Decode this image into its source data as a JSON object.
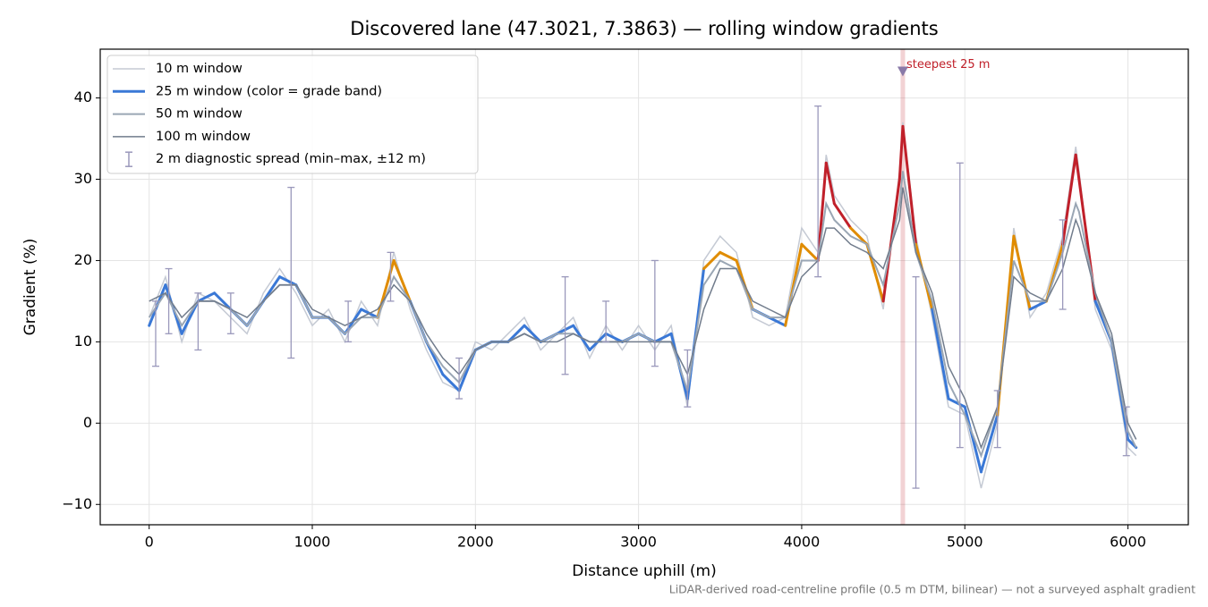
{
  "chart_data": {
    "type": "line",
    "title": "Discovered lane (47.3021, 7.3863) — rolling window gradients",
    "xlabel": "Distance uphill (m)",
    "ylabel": "Gradient (%)",
    "footnote": "LiDAR-derived road-centreline profile (0.5 m DTM, bilinear) — not a surveyed asphalt gradient",
    "xlim": [
      -300,
      6370
    ],
    "ylim": [
      -12.5,
      46
    ],
    "xticks": [
      0,
      1000,
      2000,
      3000,
      4000,
      5000,
      6000
    ],
    "yticks": [
      {
        "value": -10,
        "label": "−10"
      },
      0,
      10,
      20,
      30,
      40
    ],
    "grid": true,
    "legend": "upper left",
    "x": [
      0,
      100,
      200,
      300,
      400,
      500,
      600,
      700,
      800,
      900,
      1000,
      1100,
      1200,
      1300,
      1400,
      1500,
      1600,
      1700,
      1800,
      1900,
      2000,
      2100,
      2200,
      2300,
      2400,
      2500,
      2600,
      2700,
      2800,
      2900,
      3000,
      3100,
      3200,
      3300,
      3400,
      3500,
      3600,
      3700,
      3800,
      3900,
      4000,
      4100,
      4150,
      4200,
      4300,
      4400,
      4500,
      4600,
      4620,
      4700,
      4800,
      4900,
      5000,
      5100,
      5200,
      5300,
      5400,
      5500,
      5600,
      5680,
      5700,
      5800,
      5900,
      6000,
      6050
    ],
    "series": [
      {
        "name": "10 m window",
        "color": "#c5cad4",
        "width": 1.5,
        "values": [
          13,
          18,
          10,
          16,
          15,
          13,
          11,
          16,
          19,
          16,
          12,
          14,
          10,
          15,
          12,
          21,
          14,
          9,
          5,
          4,
          10,
          9,
          11,
          13,
          9,
          11,
          13,
          8,
          12,
          9,
          12,
          9,
          12,
          2,
          20,
          23,
          21,
          13,
          12,
          13,
          24,
          21,
          33,
          28,
          25,
          23,
          14,
          31,
          37,
          23,
          13,
          2,
          1,
          -8,
          0,
          24,
          13,
          16,
          23,
          34,
          31,
          14,
          9,
          -3,
          -4
        ]
      },
      {
        "name": "25 m window (color = grade band)",
        "color": "#3a78d6",
        "width": 3,
        "grade_bands": [
          {
            "min": 20,
            "color": "#e08c00"
          },
          {
            "min": 25,
            "color": "#c0202a"
          }
        ],
        "values": [
          12,
          17,
          11,
          15,
          16,
          14,
          12,
          15,
          18,
          17,
          13,
          13,
          11,
          14,
          13,
          20,
          15,
          10,
          6,
          4,
          9,
          10,
          10,
          12,
          10,
          11,
          12,
          9,
          11,
          10,
          11,
          10,
          11,
          3,
          19,
          21,
          20,
          14,
          13,
          12,
          22,
          20,
          32,
          27,
          24,
          22,
          15,
          30,
          36.5,
          22,
          14,
          3,
          2,
          -6,
          1,
          23,
          14,
          15,
          22,
          33,
          30,
          15,
          10,
          -2,
          -3
        ]
      },
      {
        "name": "50 m window",
        "color": "#9aa6b4",
        "width": 2,
        "values": [
          13,
          16,
          12,
          15,
          15,
          14,
          12,
          15,
          17,
          17,
          13,
          13,
          11,
          13,
          13,
          18,
          15,
          10,
          7,
          5,
          9,
          10,
          10,
          11,
          10,
          11,
          11,
          10,
          10,
          10,
          11,
          10,
          10,
          4,
          17,
          20,
          19,
          14,
          13,
          13,
          20,
          20,
          27,
          25,
          23,
          22,
          17,
          27,
          31,
          21,
          15,
          5,
          1,
          -4,
          2,
          20,
          15,
          15,
          21,
          27,
          26,
          16,
          10,
          -1,
          -3
        ]
      },
      {
        "name": "100 m window",
        "color": "#717c8c",
        "width": 1.5,
        "values": [
          15,
          16,
          13,
          15,
          15,
          14,
          13,
          15,
          17,
          17,
          14,
          13,
          12,
          13,
          14,
          17,
          15,
          11,
          8,
          6,
          9,
          10,
          10,
          11,
          10,
          10,
          11,
          10,
          10,
          10,
          10,
          10,
          10,
          6,
          14,
          19,
          19,
          15,
          14,
          13,
          18,
          20,
          24,
          24,
          22,
          21,
          19,
          25,
          29,
          21,
          16,
          7,
          3,
          -3,
          2,
          18,
          16,
          15,
          19,
          25,
          24,
          16,
          11,
          0,
          -2
        ]
      }
    ],
    "error_bars": {
      "name": "2 m diagnostic spread (min–max, ±12 m)",
      "color": "#9a98bb",
      "x": [
        40,
        120,
        300,
        500,
        870,
        1220,
        1480,
        1900,
        2550,
        2800,
        3100,
        3300,
        4100,
        4700,
        4970,
        5200,
        5600,
        5990
      ],
      "low": [
        7,
        11,
        9,
        11,
        8,
        10,
        15,
        3,
        6,
        10,
        7,
        2,
        18,
        -8,
        -3,
        -3,
        14,
        -4
      ],
      "high": [
        15,
        19,
        16,
        16,
        29,
        15,
        21,
        8,
        18,
        15,
        20,
        9,
        39,
        18,
        32,
        4,
        25,
        2
      ]
    },
    "annotation": {
      "text": "steepest 25 m",
      "x": 4620,
      "y": 43.3,
      "color": "#c0202a"
    }
  }
}
